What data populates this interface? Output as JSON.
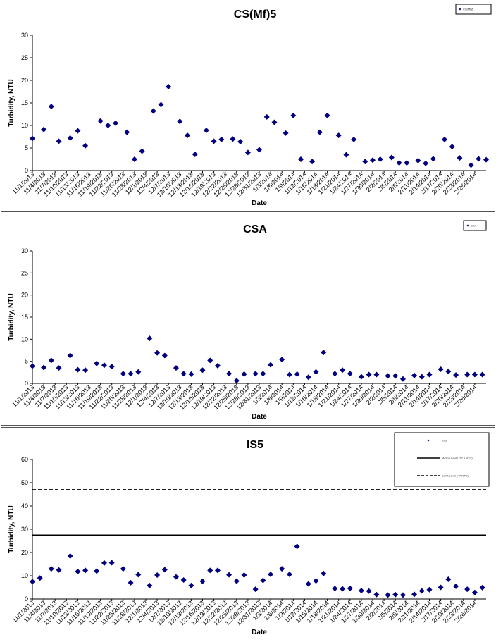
{
  "chart_data": [
    {
      "type": "scatter",
      "title": "CS(Mf)5",
      "xlabel": "Date",
      "ylabel": "Turbidity, NTU",
      "ylim": [
        0,
        30
      ],
      "yticks": [
        0,
        5,
        10,
        15,
        20,
        25,
        30
      ],
      "x_tick_labels": [
        "11/1/2013",
        "11/4/2013",
        "11/7/2013",
        "11/10/2013",
        "11/13/2013",
        "11/16/2013",
        "11/19/2013",
        "11/22/2013",
        "11/25/2013",
        "11/28/2013",
        "12/1/2013",
        "12/4/2013",
        "12/7/2013",
        "12/10/2013",
        "12/13/2013",
        "12/16/2013",
        "12/19/2013",
        "12/22/2013",
        "12/25/2013",
        "12/28/2013",
        "12/31/2013",
        "1/3/2014",
        "1/6/2014",
        "1/9/2014",
        "1/12/2014",
        "1/15/2014",
        "1/18/2014",
        "1/21/2014",
        "1/24/2014",
        "1/27/2014",
        "1/30/2014",
        "2/2/2014",
        "2/5/2014",
        "2/8/2014",
        "2/11/2014",
        "2/14/2014",
        "2/17/2014",
        "2/20/2014",
        "2/23/2014",
        "2/26/2014"
      ],
      "legend": {
        "position": "top-right",
        "entries": [
          "CS(Mf)5"
        ]
      },
      "marker_color": "#000080",
      "series": [
        {
          "name": "CS(Mf)5",
          "x": [
            "11/1/2013",
            "11/4/2013",
            "11/6/2013",
            "11/8/2013",
            "11/11/2013",
            "11/13/2013",
            "11/15/2013",
            "11/19/2013",
            "11/21/2013",
            "11/23/2013",
            "11/26/2013",
            "11/28/2013",
            "11/30/2013",
            "12/3/2013",
            "12/5/2013",
            "12/7/2013",
            "12/10/2013",
            "12/12/2013",
            "12/14/2013",
            "12/17/2013",
            "12/19/2013",
            "12/21/2013",
            "12/24/2013",
            "12/26/2013",
            "12/28/2013",
            "12/31/2013",
            "1/2/2014",
            "1/4/2014",
            "1/7/2014",
            "1/9/2014",
            "1/11/2014",
            "1/14/2014",
            "1/16/2014",
            "1/18/2014",
            "1/21/2014",
            "1/23/2014",
            "1/25/2014",
            "1/28/2014",
            "1/30/2014",
            "2/1/2014",
            "2/4/2014",
            "2/6/2014",
            "2/8/2014",
            "2/11/2014",
            "2/13/2014",
            "2/15/2014",
            "2/18/2014",
            "2/20/2014",
            "2/22/2014",
            "2/25/2014",
            "2/27/2014",
            "3/1/2014"
          ],
          "y": [
            7.1,
            9.1,
            14.2,
            6.5,
            7.2,
            8.8,
            5.5,
            11.0,
            10.0,
            10.5,
            8.5,
            2.5,
            4.3,
            13.2,
            14.6,
            18.6,
            10.9,
            7.8,
            3.6,
            8.9,
            6.5,
            6.9,
            7.0,
            6.4,
            4.0,
            4.6,
            11.9,
            10.7,
            8.3,
            12.2,
            2.5,
            2.0,
            8.5,
            12.2,
            7.8,
            3.5,
            6.9,
            2.0,
            2.3,
            2.5,
            2.9,
            1.7,
            1.7,
            2.2,
            1.6,
            2.6,
            6.9,
            5.3,
            2.8,
            1.2,
            2.6,
            2.4
          ]
        }
      ]
    },
    {
      "type": "scatter",
      "title": "CSA",
      "xlabel": "Date",
      "ylabel": "Turbidity, NTU",
      "ylim": [
        0,
        30
      ],
      "yticks": [
        0,
        5,
        10,
        15,
        20,
        25,
        30
      ],
      "x_tick_labels": [
        "11/1/2013",
        "11/4/2013",
        "11/7/2013",
        "11/10/2013",
        "11/13/2013",
        "11/16/2013",
        "11/19/2013",
        "11/22/2013",
        "11/25/2013",
        "11/28/2013",
        "12/1/2013",
        "12/4/2013",
        "12/7/2013",
        "12/10/2013",
        "12/13/2013",
        "12/16/2013",
        "12/19/2013",
        "12/22/2013",
        "12/25/2013",
        "12/28/2013",
        "12/31/2013",
        "1/3/2014",
        "1/6/2014",
        "1/9/2014",
        "1/12/2014",
        "1/15/2014",
        "1/18/2014",
        "1/21/2014",
        "1/24/2014",
        "1/27/2014",
        "1/30/2014",
        "2/2/2014",
        "2/5/2014",
        "2/8/2014",
        "2/11/2014",
        "2/14/2014",
        "2/17/2014",
        "2/20/2014",
        "2/23/2014",
        "2/26/2014"
      ],
      "legend": {
        "position": "top-right",
        "entries": [
          "CSA"
        ]
      },
      "marker_color": "#000080",
      "series": [
        {
          "name": "CSA",
          "x": [
            "11/1/2013",
            "11/4/2013",
            "11/6/2013",
            "11/8/2013",
            "11/11/2013",
            "11/13/2013",
            "11/15/2013",
            "11/18/2013",
            "11/20/2013",
            "11/22/2013",
            "11/25/2013",
            "11/27/2013",
            "11/29/2013",
            "12/2/2013",
            "12/4/2013",
            "12/6/2013",
            "12/9/2013",
            "12/11/2013",
            "12/13/2013",
            "12/16/2013",
            "12/18/2013",
            "12/20/2013",
            "12/23/2013",
            "12/25/2013",
            "12/27/2013",
            "12/30/2013",
            "1/1/2014",
            "1/3/2014",
            "1/6/2014",
            "1/8/2014",
            "1/10/2014",
            "1/13/2014",
            "1/15/2014",
            "1/17/2014",
            "1/20/2014",
            "1/22/2014",
            "1/24/2014",
            "1/27/2014",
            "1/29/2014",
            "1/31/2014",
            "2/3/2014",
            "2/5/2014",
            "2/7/2014",
            "2/10/2014",
            "2/12/2014",
            "2/14/2014",
            "2/17/2014",
            "2/19/2014",
            "2/21/2014",
            "2/24/2014",
            "2/26/2014",
            "2/28/2014"
          ],
          "y": [
            3.9,
            3.6,
            5.2,
            3.5,
            6.3,
            3.1,
            3.0,
            4.5,
            4.1,
            3.8,
            2.2,
            2.2,
            2.6,
            10.2,
            6.9,
            6.3,
            3.5,
            2.2,
            2.1,
            3.0,
            5.2,
            4.0,
            2.2,
            0.6,
            2.1,
            2.2,
            2.2,
            4.2,
            5.4,
            2.0,
            2.1,
            1.4,
            2.6,
            7.0,
            2.2,
            3.0,
            2.2,
            1.5,
            2.0,
            2.0,
            1.7,
            1.7,
            1.0,
            1.8,
            1.5,
            2.0,
            3.2,
            2.7,
            1.9,
            2.0,
            2.0,
            2.0
          ]
        }
      ]
    },
    {
      "type": "scatter",
      "title": "IS5",
      "xlabel": "Date",
      "ylabel": "Turbidity, NTU",
      "ylim": [
        0,
        60
      ],
      "yticks": [
        0,
        10,
        20,
        30,
        40,
        50,
        60
      ],
      "x_tick_labels": [
        "11/1/2013",
        "11/4/2013",
        "11/7/2013",
        "11/10/2013",
        "11/13/2013",
        "11/16/2013",
        "11/19/2013",
        "11/22/2013",
        "11/25/2013",
        "11/28/2013",
        "12/1/2013",
        "12/4/2013",
        "12/7/2013",
        "12/10/2013",
        "12/13/2013",
        "12/16/2013",
        "12/19/2013",
        "12/22/2013",
        "12/25/2013",
        "12/28/2013",
        "12/31/2013",
        "1/3/2014",
        "1/6/2014",
        "1/9/2014",
        "1/12/2014",
        "1/15/2014",
        "1/18/2014",
        "1/21/2014",
        "1/24/2014",
        "1/27/2014",
        "1/30/2014",
        "2/2/2014",
        "2/5/2014",
        "2/8/2014",
        "2/11/2014",
        "2/14/2014",
        "2/17/2014",
        "2/20/2014",
        "2/23/2014",
        "2/26/2014"
      ],
      "legend": {
        "position": "top-right",
        "entries": [
          "IS5",
          "Action Level (27.5 NTU)",
          "Limit Level (47 NTU)"
        ]
      },
      "marker_color": "#000080",
      "reference_lines": [
        {
          "value": 27.5,
          "style": "solid"
        },
        {
          "value": 47,
          "style": "dashed"
        }
      ],
      "series": [
        {
          "name": "IS5",
          "x": [
            "11/1/2013",
            "11/3/2013",
            "11/6/2013",
            "11/8/2013",
            "11/11/2013",
            "11/13/2013",
            "11/15/2013",
            "11/18/2013",
            "11/20/2013",
            "11/22/2013",
            "11/25/2013",
            "11/27/2013",
            "11/29/2013",
            "12/2/2013",
            "12/4/2013",
            "12/6/2013",
            "12/9/2013",
            "12/11/2013",
            "12/13/2013",
            "12/16/2013",
            "12/18/2013",
            "12/20/2013",
            "12/23/2013",
            "12/25/2013",
            "12/27/2013",
            "12/30/2013",
            "1/1/2014",
            "1/3/2014",
            "1/6/2014",
            "1/8/2014",
            "1/10/2014",
            "1/13/2014",
            "1/15/2014",
            "1/17/2014",
            "1/20/2014",
            "1/22/2014",
            "1/24/2014",
            "1/27/2014",
            "1/29/2014",
            "1/31/2014",
            "2/3/2014",
            "2/5/2014",
            "2/7/2014",
            "2/10/2014",
            "2/12/2014",
            "2/14/2014",
            "2/17/2014",
            "2/19/2014",
            "2/21/2014",
            "2/24/2014",
            "2/26/2014",
            "2/28/2014"
          ],
          "y": [
            7.5,
            9.0,
            13.0,
            12.5,
            18.5,
            11.8,
            12.3,
            12.0,
            15.5,
            15.6,
            13.0,
            7.0,
            10.5,
            5.8,
            10.3,
            12.6,
            9.5,
            8.2,
            5.8,
            7.6,
            12.3,
            12.3,
            10.4,
            7.7,
            10.3,
            4.2,
            8.0,
            10.6,
            13.0,
            10.6,
            22.6,
            6.5,
            7.8,
            11.0,
            4.5,
            4.4,
            4.6,
            3.6,
            3.4,
            1.9,
            1.7,
            1.9,
            1.7,
            2.0,
            3.5,
            4.0,
            5.0,
            8.5,
            5.5,
            4.2,
            2.8,
            4.9
          ]
        }
      ]
    }
  ]
}
